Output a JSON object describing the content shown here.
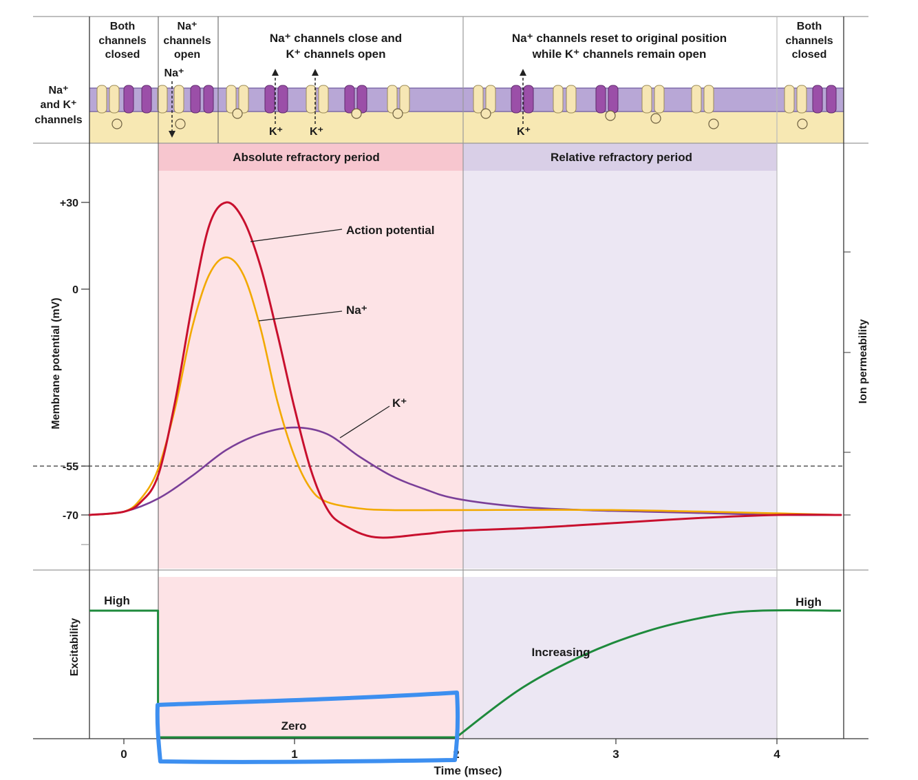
{
  "colors": {
    "action_potential": "#c8102e",
    "na": "#f2a900",
    "k": "#7a3f98",
    "excitability": "#1e8a3c",
    "absolute_band": "#fde3e6",
    "absolute_header": "#f7c6cf",
    "relative_band": "#ece7f3",
    "relative_header": "#d9cfe7",
    "membrane": "#b8a7d6",
    "cytoplasm": "#f7e8b3",
    "highlight": "#3d8ff0"
  },
  "phases": [
    {
      "lines": [
        "Both",
        "channels",
        "closed"
      ]
    },
    {
      "lines": [
        "Na⁺",
        "channels",
        "open"
      ]
    },
    {
      "lines": [
        "Na⁺ channels close and",
        "K⁺ channels open"
      ]
    },
    {
      "lines": [
        "Na⁺ channels reset to original position",
        "while K⁺ channels remain open"
      ]
    },
    {
      "lines": [
        "Both",
        "channels",
        "closed"
      ]
    }
  ],
  "channels": {
    "label_lines": [
      "Na⁺",
      "and K⁺",
      "channels"
    ],
    "na_in_label": "Na⁺",
    "k_out_labels": [
      "K⁺",
      "K⁺",
      "K⁺"
    ]
  },
  "periods": {
    "absolute": "Absolute refractory period",
    "relative": "Relative refractory period"
  },
  "chart_data": [
    {
      "type": "line",
      "title": "",
      "xlabel": "",
      "ylabel": "Membrane potential (mV)",
      "right_label": "Ion permeability",
      "xlim": [
        -0.2,
        4.4
      ],
      "ylim": [
        -86,
        48
      ],
      "ytick_labels": [
        {
          "value": 30,
          "label": "+30"
        },
        {
          "value": 0,
          "label": "0"
        },
        {
          "value": -55,
          "label": "-55"
        },
        {
          "value": -70,
          "label": "-70"
        }
      ],
      "threshold": -55,
      "series": [
        {
          "name": "Action potential",
          "label": "Action potential",
          "color_key": "action_potential",
          "x": [
            -0.2,
            0.0,
            0.1,
            0.2,
            0.3,
            0.4,
            0.5,
            0.6,
            0.7,
            0.8,
            0.9,
            1.0,
            1.1,
            1.2,
            1.3,
            1.5,
            1.8,
            2.0,
            2.5,
            3.0,
            3.5,
            4.0,
            4.4
          ],
          "y": [
            -70,
            -69,
            -66,
            -58,
            -35,
            -5,
            22,
            30,
            24,
            8,
            -14,
            -37,
            -56,
            -68,
            -73,
            -77,
            -76,
            -75,
            -74,
            -72.5,
            -71,
            -70,
            -70
          ]
        },
        {
          "name": "Na+",
          "label": "Na⁺",
          "color_key": "na",
          "x": [
            -0.2,
            0.0,
            0.1,
            0.2,
            0.3,
            0.4,
            0.5,
            0.6,
            0.7,
            0.8,
            0.9,
            1.0,
            1.1,
            1.2,
            1.4,
            1.6,
            2.0,
            3.0,
            4.0,
            4.4
          ],
          "y": [
            -70,
            -69,
            -65,
            -56,
            -37,
            -12,
            5,
            11,
            5,
            -12,
            -35,
            -52,
            -62,
            -66,
            -68,
            -68.5,
            -68.5,
            -68.5,
            -69.5,
            -70
          ]
        },
        {
          "name": "K+",
          "label": "K⁺",
          "color_key": "k",
          "x": [
            -0.2,
            0.0,
            0.2,
            0.4,
            0.6,
            0.8,
            1.0,
            1.2,
            1.4,
            1.6,
            1.8,
            2.0,
            2.4,
            2.8,
            3.2,
            3.6,
            4.0,
            4.4
          ],
          "y": [
            -70,
            -69,
            -65,
            -58,
            -50,
            -45,
            -43,
            -45,
            -52,
            -58,
            -62,
            -65,
            -67.5,
            -68.5,
            -69,
            -69.5,
            -70,
            -70
          ]
        }
      ]
    },
    {
      "type": "line",
      "title": "",
      "xlabel": "Time (msec)",
      "ylabel": "Excitability",
      "xlim": [
        -0.2,
        4.4
      ],
      "ylim": [
        0,
        1
      ],
      "xticks": [
        0,
        1,
        2,
        3,
        4
      ],
      "xtick_labels": [
        "0",
        "1",
        "2",
        "3",
        "4"
      ],
      "series": [
        {
          "name": "Excitability",
          "x": [
            -0.2,
            0.2,
            0.2,
            2.0,
            2.4,
            2.8,
            3.2,
            3.6,
            3.9,
            4.4
          ],
          "y": [
            1,
            1,
            0,
            0,
            0.38,
            0.65,
            0.84,
            0.96,
            1,
            1
          ]
        }
      ],
      "annotations": {
        "high_left": "High",
        "high_right": "High",
        "increasing": "Increasing",
        "zero": "Zero"
      }
    }
  ]
}
